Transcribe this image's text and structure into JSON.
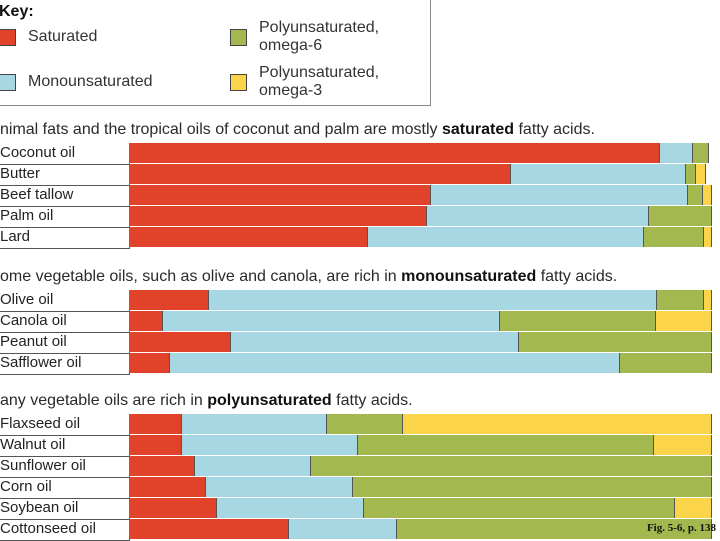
{
  "chart_data": {
    "type": "bar",
    "stacked": true,
    "orientation": "horizontal",
    "xlim": [
      0,
      100
    ],
    "unit": "percent of total fat",
    "key": {
      "title": "Key:",
      "items": [
        {
          "name": "Saturated",
          "color": "#e0432a"
        },
        {
          "name": "Monounsaturated",
          "color": "#a7d7e2"
        },
        {
          "name": "Polyunsaturated, omega-6",
          "color": "#a3b84e"
        },
        {
          "name": "Polyunsaturated, omega-3",
          "color": "#fbd44a"
        }
      ]
    },
    "groups": [
      {
        "heading_pre": "nimal fats and the tropical oils of coconut and palm are mostly ",
        "heading_bold": "saturated",
        "heading_post": " fatty acids.",
        "rows": [
          {
            "label": "Coconut oil",
            "values": [
              91.1,
              5.7,
              2.6,
              0
            ]
          },
          {
            "label": "Butter",
            "values": [
              65.6,
              30.0,
              1.6,
              1.8
            ]
          },
          {
            "label": "Beef tallow",
            "values": [
              51.8,
              44.0,
              2.6,
              1.6
            ]
          },
          {
            "label": "Palm oil",
            "values": [
              51.1,
              38.1,
              10.8,
              0
            ]
          },
          {
            "label": "Lard",
            "values": [
              41.0,
              47.4,
              10.3,
              1.3
            ]
          }
        ]
      },
      {
        "heading_pre": "ome vegetable oils, such as olive and canola, are rich in ",
        "heading_bold": "monounsaturated",
        "heading_post": " fatty acids.",
        "rows": [
          {
            "label": "Olive oil",
            "values": [
              13.7,
              76.9,
              8.0,
              1.4
            ]
          },
          {
            "label": "Canola oil",
            "values": [
              5.9,
              57.7,
              26.8,
              9.6
            ]
          },
          {
            "label": "Peanut oil",
            "values": [
              17.5,
              49.4,
              33.1,
              0
            ]
          },
          {
            "label": "Safflower oil",
            "values": [
              7.0,
              77.3,
              15.7,
              0
            ]
          }
        ]
      },
      {
        "heading_pre": "any vegetable oils are rich in ",
        "heading_bold": "polyunsaturated",
        "heading_post": " fatty acids.",
        "rows": [
          {
            "label": "Flaxseed oil",
            "values": [
              9.1,
              24.9,
              13.0,
              53.0
            ]
          },
          {
            "label": "Walnut oil",
            "values": [
              9.1,
              30.2,
              50.8,
              9.9
            ]
          },
          {
            "label": "Sunflower oil",
            "values": [
              11.3,
              19.9,
              68.8,
              0
            ]
          },
          {
            "label": "Corn oil",
            "values": [
              13.2,
              25.2,
              61.6,
              0
            ]
          },
          {
            "label": "Soybean oil",
            "values": [
              15.1,
              25.2,
              53.3,
              6.4
            ]
          },
          {
            "label": "Cottonseed oil",
            "values": [
              27.4,
              18.5,
              54.1,
              0
            ]
          }
        ]
      }
    ],
    "caption": "Fig. 5-6, p. 138"
  }
}
